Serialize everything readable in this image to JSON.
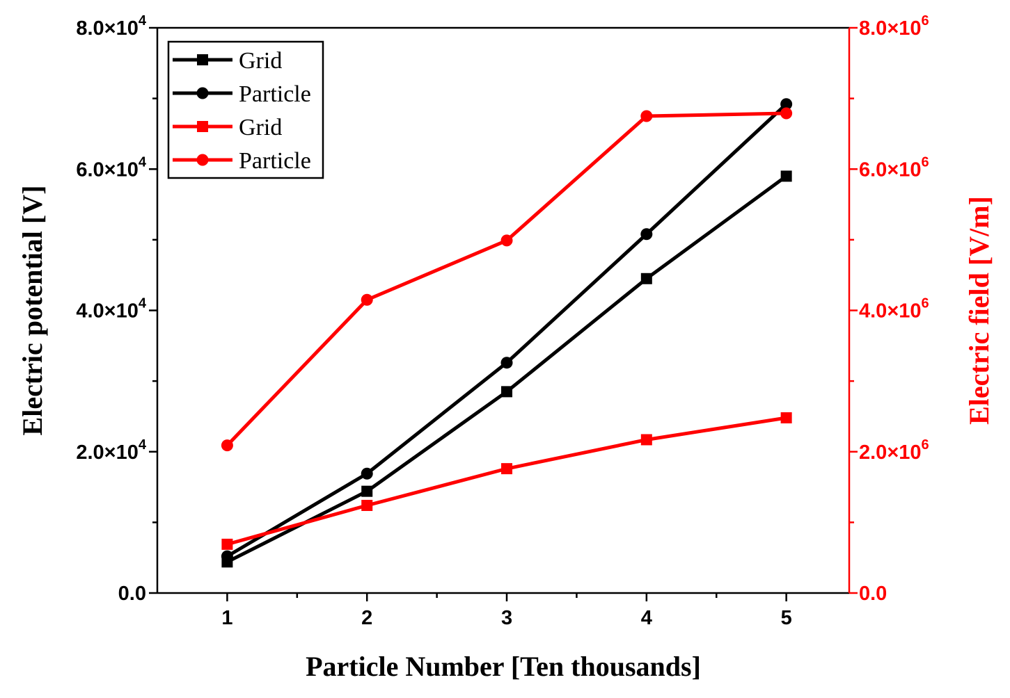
{
  "colors": {
    "left": "#000000",
    "right": "#ff0000"
  },
  "chart_data": {
    "type": "line",
    "title": "",
    "xlabel": "Particle Number [Ten thousands]",
    "ylabel_left": "Electric potential [V]",
    "ylabel_right": "Electric field [V/m]",
    "xlim": [
      0.5,
      5.45
    ],
    "ylim_left": [
      0,
      80000
    ],
    "ylim_right": [
      0,
      8000000
    ],
    "x_ticks": [
      "1",
      "2",
      "3",
      "4",
      "5"
    ],
    "y_left_ticks": [
      {
        "value": 0,
        "mantissa": "0.0",
        "exp": ""
      },
      {
        "value": 20000,
        "mantissa": "2.0×10",
        "exp": "4"
      },
      {
        "value": 40000,
        "mantissa": "4.0×10",
        "exp": "4"
      },
      {
        "value": 60000,
        "mantissa": "6.0×10",
        "exp": "4"
      },
      {
        "value": 80000,
        "mantissa": "8.0×10",
        "exp": "4"
      }
    ],
    "y_right_ticks": [
      {
        "value": 0,
        "mantissa": "0.0",
        "exp": ""
      },
      {
        "value": 2000000,
        "mantissa": "2.0×10",
        "exp": "6"
      },
      {
        "value": 4000000,
        "mantissa": "4.0×10",
        "exp": "6"
      },
      {
        "value": 6000000,
        "mantissa": "6.0×10",
        "exp": "6"
      },
      {
        "value": 8000000,
        "mantissa": "8.0×10",
        "exp": "6"
      }
    ],
    "x": [
      1,
      2,
      3,
      4,
      5
    ],
    "series": [
      {
        "name": "Grid",
        "axis": "left",
        "color": "#000000",
        "marker": "square",
        "values": [
          4400,
          14400,
          28500,
          44500,
          59000
        ]
      },
      {
        "name": "Particle",
        "axis": "left",
        "color": "#000000",
        "marker": "circle",
        "values": [
          5200,
          16900,
          32600,
          50800,
          69200
        ]
      },
      {
        "name": "Grid",
        "axis": "right",
        "color": "#ff0000",
        "marker": "square",
        "values": [
          690000,
          1240000,
          1760000,
          2170000,
          2480000
        ]
      },
      {
        "name": "Particle",
        "axis": "right",
        "color": "#ff0000",
        "marker": "circle",
        "values": [
          2090000,
          4150000,
          4990000,
          6750000,
          6790000
        ]
      }
    ],
    "legend_position": "top-left"
  }
}
